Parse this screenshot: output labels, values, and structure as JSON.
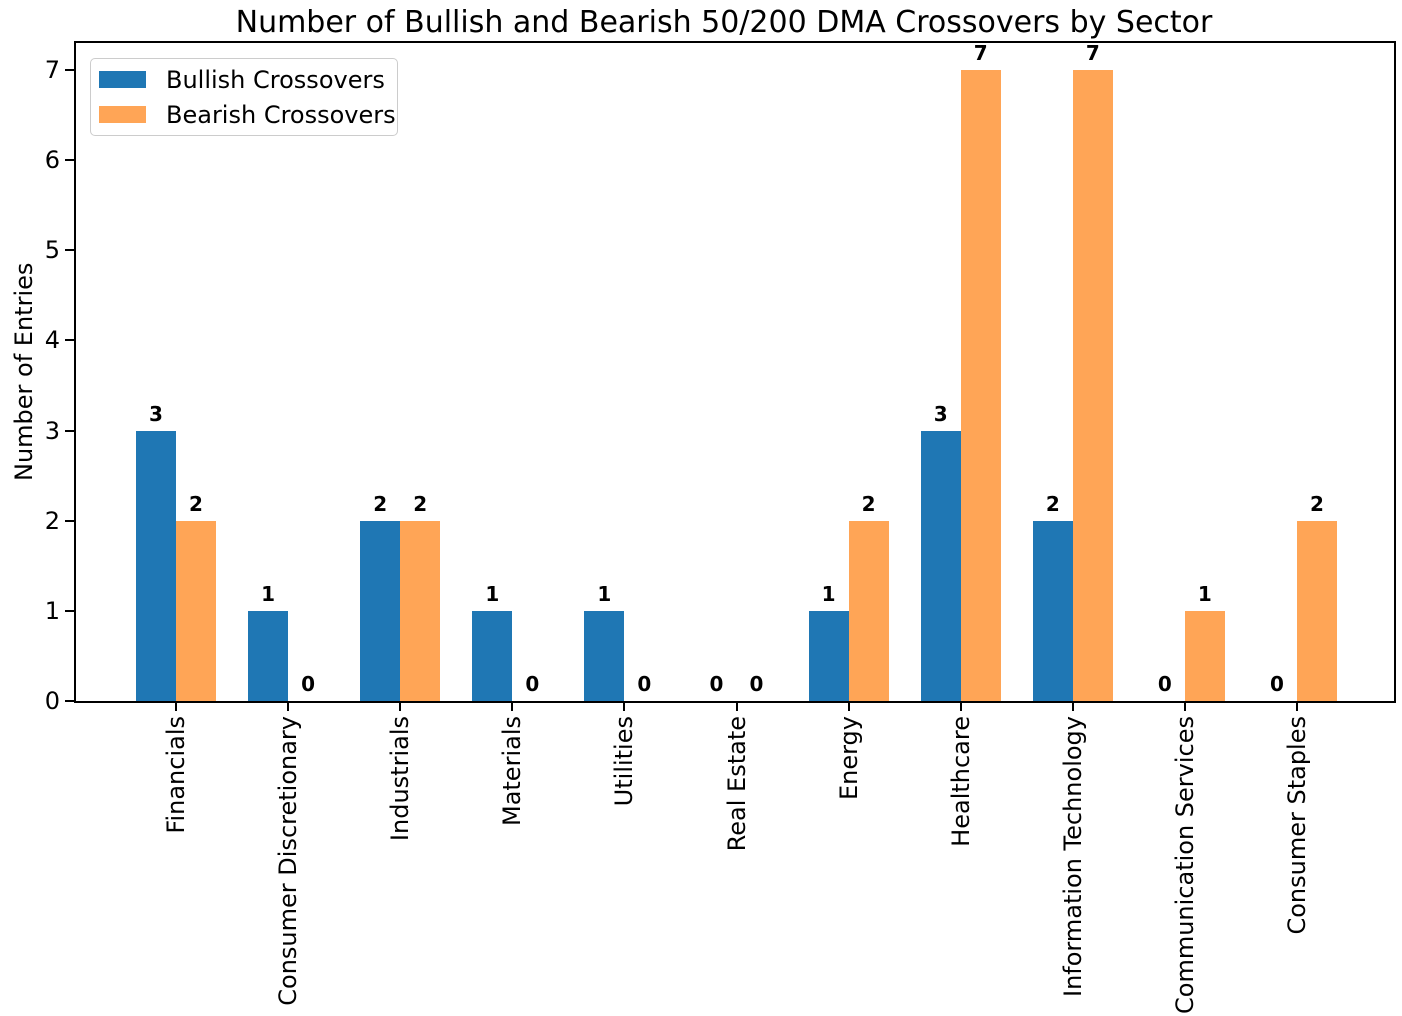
{
  "chart_data": {
    "type": "bar",
    "title": "Number of Bullish and Bearish 50/200 DMA Crossovers by Sector",
    "xlabel": "",
    "ylabel": "Number of Entries",
    "categories": [
      "Financials",
      "Consumer Discretionary",
      "Industrials",
      "Materials",
      "Utilities",
      "Real Estate",
      "Energy",
      "Healthcare",
      "Information Technology",
      "Communication Services",
      "Consumer Staples"
    ],
    "series": [
      {
        "name": "Bullish Crossovers",
        "color": "#1f77b4",
        "values": [
          3,
          1,
          2,
          1,
          1,
          0,
          1,
          3,
          2,
          0,
          0
        ]
      },
      {
        "name": "Bearish Crossovers",
        "color": "#ffa556",
        "values": [
          2,
          0,
          2,
          0,
          0,
          0,
          2,
          7,
          7,
          1,
          2
        ]
      }
    ],
    "yticks": [
      0,
      1,
      2,
      3,
      4,
      5,
      6,
      7
    ],
    "ylim": [
      0,
      7.3
    ],
    "bar_value_labels": true,
    "grid": false,
    "legend_position": "upper-left",
    "spine_color": "#000000",
    "background_color": "#ffffff"
  }
}
